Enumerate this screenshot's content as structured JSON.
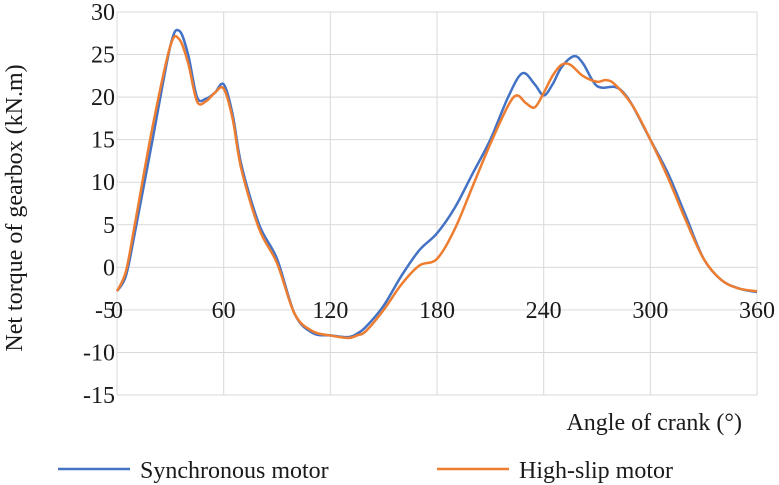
{
  "chart_data": {
    "type": "line",
    "xlabel": "Angle of crank (°)",
    "ylabel": "Net torque of gearbox (kN.m)",
    "xlim": [
      0,
      360
    ],
    "ylim": [
      -15,
      30
    ],
    "xticks": [
      0,
      60,
      120,
      180,
      240,
      300,
      360
    ],
    "yticks": [
      30,
      25,
      20,
      15,
      10,
      5,
      0,
      -5,
      -10,
      -15
    ],
    "grid": "both",
    "legend_position": "bottom",
    "series": [
      {
        "name": "Synchronous motor",
        "color": "#4472c4",
        "x": [
          0,
          5,
          10,
          20,
          30,
          35,
          40,
          45,
          50,
          55,
          60,
          65,
          70,
          80,
          90,
          100,
          110,
          120,
          130,
          135,
          140,
          150,
          160,
          170,
          180,
          190,
          200,
          210,
          220,
          228,
          235,
          240,
          245,
          250,
          257,
          262,
          270,
          280,
          285,
          290,
          300,
          310,
          320,
          330,
          340,
          350,
          360
        ],
        "y": [
          -2.8,
          -1.0,
          4.0,
          15.0,
          26.0,
          27.8,
          25.0,
          20.0,
          19.8,
          20.5,
          21.5,
          18.0,
          12.0,
          5.0,
          1.0,
          -5.5,
          -7.7,
          -8.0,
          -8.2,
          -7.8,
          -7.0,
          -4.5,
          -1.0,
          2.0,
          4.0,
          7.0,
          11.0,
          15.0,
          20.0,
          22.8,
          21.5,
          20.2,
          21.5,
          23.5,
          24.8,
          24.0,
          21.3,
          21.2,
          20.5,
          19.0,
          15.0,
          11.0,
          6.0,
          1.0,
          -1.5,
          -2.5,
          -2.9
        ]
      },
      {
        "name": "High-slip motor",
        "color": "#ed7d31",
        "x": [
          0,
          5,
          10,
          20,
          30,
          35,
          40,
          45,
          50,
          55,
          60,
          65,
          70,
          80,
          90,
          100,
          110,
          120,
          130,
          135,
          140,
          150,
          160,
          170,
          180,
          190,
          200,
          210,
          220,
          225,
          230,
          235,
          240,
          245,
          250,
          255,
          262,
          270,
          275,
          280,
          290,
          300,
          310,
          320,
          330,
          340,
          350,
          360
        ],
        "y": [
          -2.8,
          -0.5,
          5.0,
          16.5,
          26.0,
          26.8,
          24.0,
          19.5,
          19.5,
          20.5,
          21.0,
          17.5,
          11.5,
          4.5,
          0.5,
          -5.5,
          -7.5,
          -8.0,
          -8.3,
          -8.0,
          -7.5,
          -5.0,
          -2.0,
          0.2,
          1.0,
          4.5,
          9.5,
          14.5,
          19.0,
          20.2,
          19.3,
          18.8,
          20.5,
          22.5,
          23.8,
          23.8,
          22.5,
          21.8,
          22.0,
          21.5,
          19.0,
          15.0,
          10.5,
          5.5,
          1.0,
          -1.5,
          -2.5,
          -2.8
        ]
      }
    ]
  }
}
